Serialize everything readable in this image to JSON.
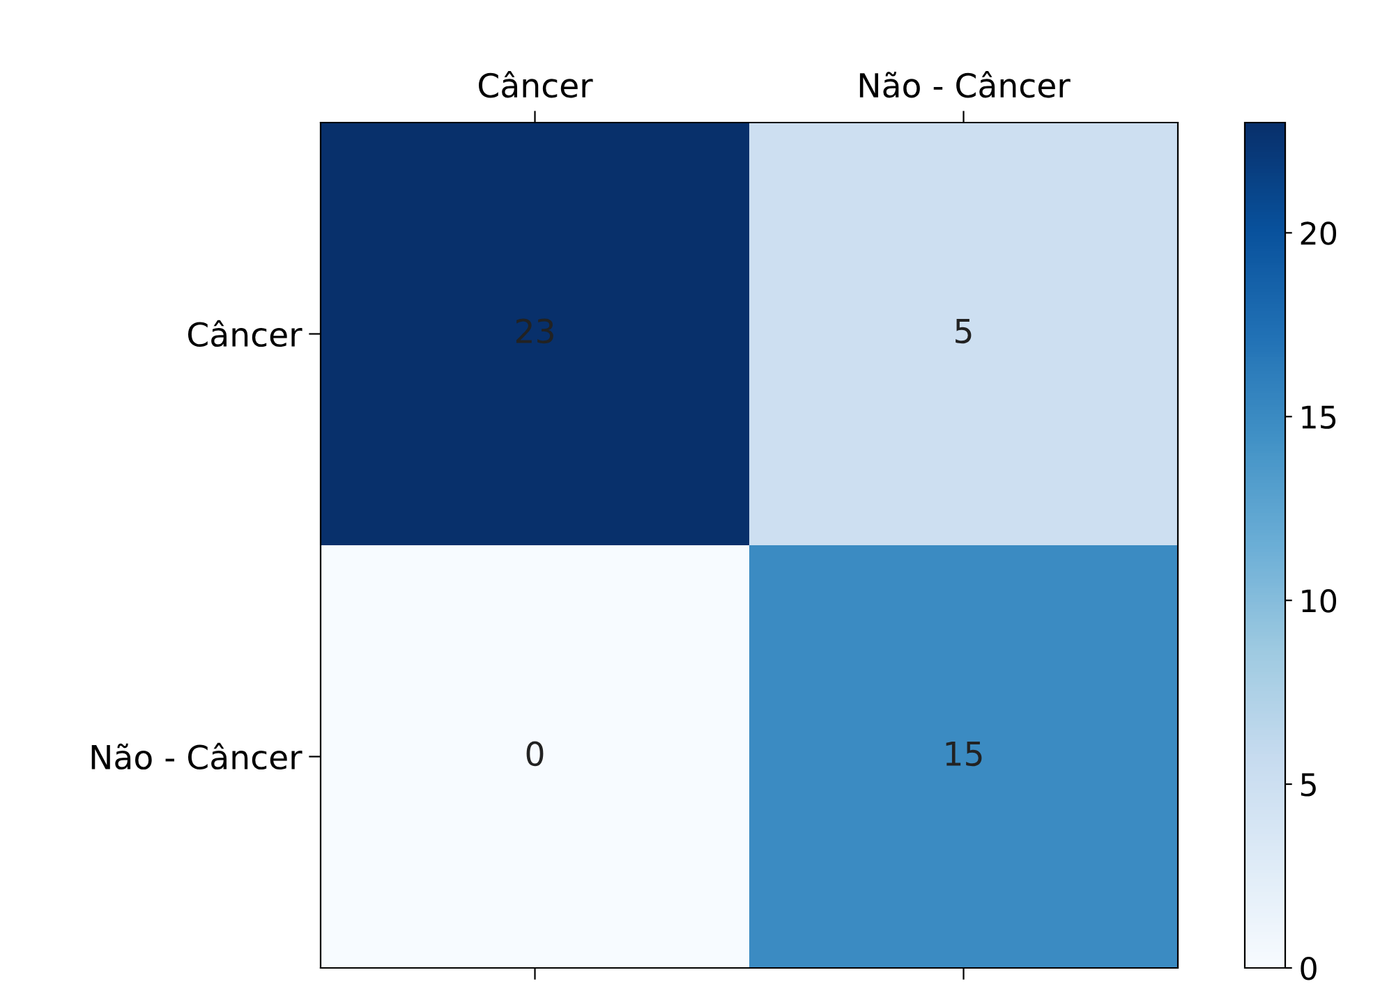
{
  "chart_data": {
    "type": "heatmap",
    "categories": [
      "Câncer",
      "Não - Câncer"
    ],
    "y_categories": [
      "Câncer",
      "Não - Câncer"
    ],
    "cells": [
      [
        23,
        5
      ],
      [
        0,
        15
      ]
    ],
    "data_labels": true,
    "clim": [
      0,
      23
    ],
    "cticks": [
      0,
      5,
      10,
      15,
      20
    ]
  }
}
